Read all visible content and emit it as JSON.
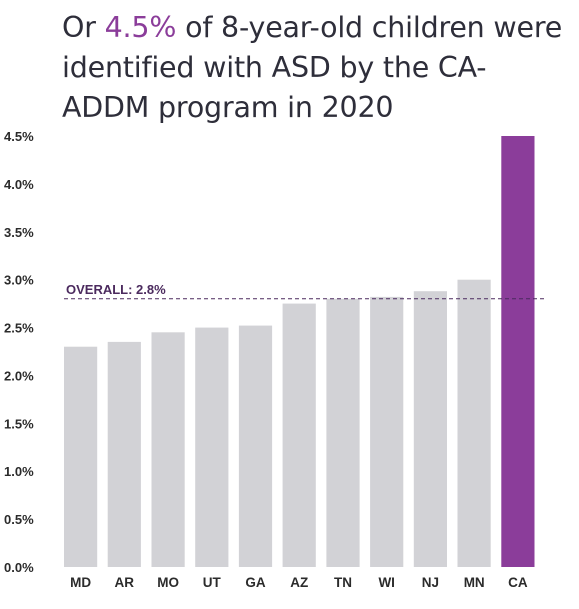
{
  "title": {
    "prefix": "Or ",
    "highlight": "4.5%",
    "suffix": " of 8-year-old children were identified with ASD by the CA-ADDM program in 2020"
  },
  "chart_data": {
    "type": "bar",
    "title": "Or 4.5% of 8-year-old children were identified with ASD by the CA-ADDM program in 2020",
    "xlabel": "",
    "ylabel": "",
    "categories": [
      "MD",
      "AR",
      "MO",
      "UT",
      "GA",
      "AZ",
      "TN",
      "WI",
      "NJ",
      "MN",
      "CA"
    ],
    "values": [
      2.3,
      2.35,
      2.45,
      2.5,
      2.52,
      2.75,
      2.8,
      2.82,
      2.88,
      3.0,
      4.5
    ],
    "highlight_category": "CA",
    "ylim": [
      0,
      4.5
    ],
    "yticks": [
      0,
      0.5,
      1.0,
      1.5,
      2.0,
      2.5,
      3.0,
      3.5,
      4.0,
      4.5
    ],
    "ytick_labels": [
      "0.0%",
      "0.5%",
      "1.0%",
      "1.5%",
      "2.0%",
      "2.5%",
      "3.0%",
      "3.5%",
      "4.0%",
      "4.5%"
    ],
    "reference_line": {
      "value": 2.8,
      "label": "OVERALL: 2.8%"
    },
    "grid": false,
    "colors": {
      "bar": "#d2d2d6",
      "highlight": "#8b3d9a",
      "reference": "#4b2a5e"
    }
  }
}
